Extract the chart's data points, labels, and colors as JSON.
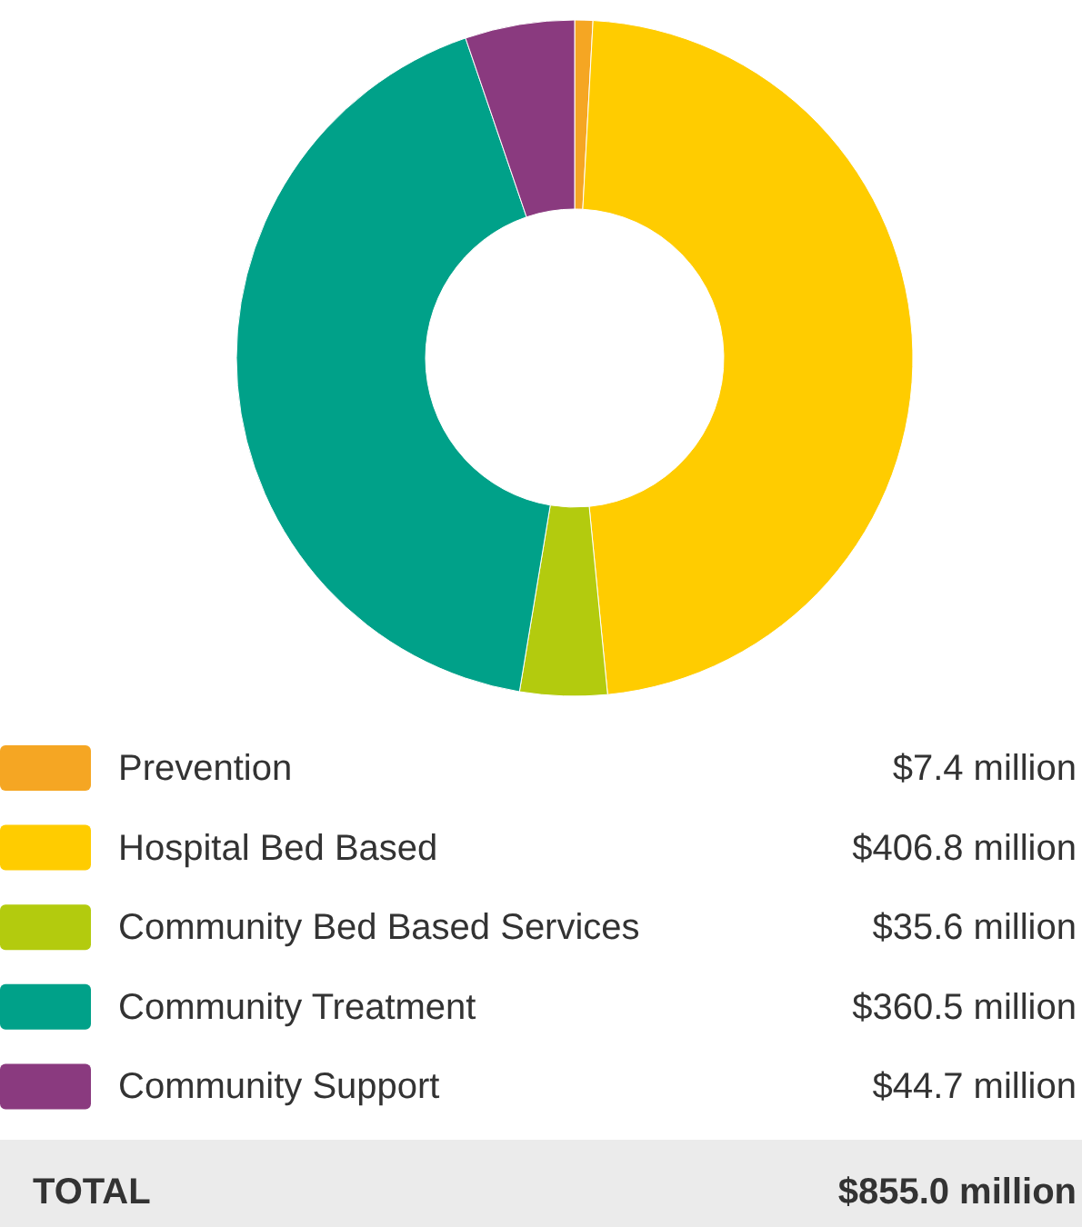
{
  "chart_data": {
    "type": "donut",
    "categories": [
      "Prevention",
      "Hospital Bed Based",
      "Community Bed Based Services",
      "Community Treatment",
      "Community Support"
    ],
    "values": [
      7.4,
      406.8,
      35.6,
      360.5,
      44.7
    ],
    "colors": [
      "#f5a623",
      "#ffcc00",
      "#b3cb0e",
      "#00a189",
      "#8a3a7f"
    ],
    "value_labels": [
      "$7.4 million",
      "$406.8 million",
      "$35.6 million",
      "$360.5 million",
      "$44.7 million"
    ],
    "legend": "bottom",
    "annotations": [
      "TOTAL",
      "$855.0 million"
    ]
  }
}
